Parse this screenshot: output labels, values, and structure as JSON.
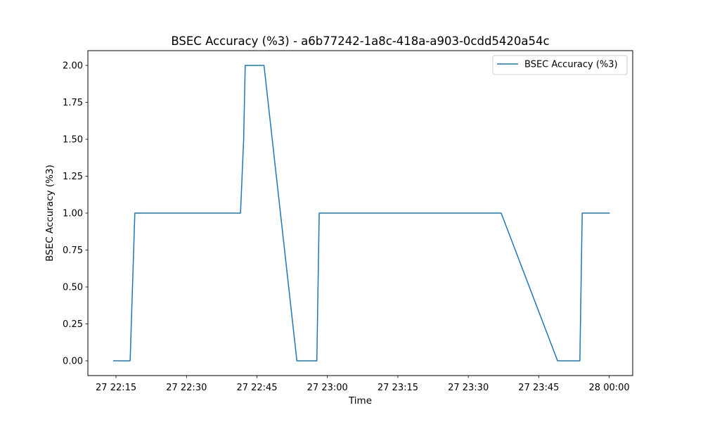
{
  "chart_data": {
    "type": "line",
    "title": "BSEC Accuracy (%3) - a6b77242-1a8c-418a-a903-0cdd5420a54c",
    "xlabel": "Time",
    "ylabel": "BSEC Accuracy (%3)",
    "xlim": [
      "27 22:09",
      "28 00:05"
    ],
    "ylim": [
      -0.1,
      2.1
    ],
    "grid": false,
    "legend": {
      "position": "top-right",
      "entries": [
        "BSEC Accuracy (%3)"
      ]
    },
    "x_ticks": [
      "27 22:15",
      "27 22:30",
      "27 22:45",
      "27 23:00",
      "27 23:15",
      "27 23:30",
      "27 23:45",
      "28 00:00"
    ],
    "y_ticks": [
      "0.00",
      "0.25",
      "0.50",
      "0.75",
      "1.00",
      "1.25",
      "1.50",
      "1.75",
      "2.00"
    ],
    "series": [
      {
        "name": "BSEC Accuracy (%3)",
        "color": "#1f77b4",
        "points": [
          {
            "x": "27 22:14:30",
            "y": 0
          },
          {
            "x": "27 22:18:00",
            "y": 0
          },
          {
            "x": "27 22:19:00",
            "y": 1
          },
          {
            "x": "27 22:41:30",
            "y": 1
          },
          {
            "x": "27 22:42:10",
            "y": 1.5
          },
          {
            "x": "27 22:42:30",
            "y": 2
          },
          {
            "x": "27 22:46:30",
            "y": 2
          },
          {
            "x": "27 22:53:30",
            "y": 0
          },
          {
            "x": "27 22:57:45",
            "y": 0
          },
          {
            "x": "27 22:58:15",
            "y": 1
          },
          {
            "x": "27 23:37:00",
            "y": 1
          },
          {
            "x": "27 23:49:00",
            "y": 0
          },
          {
            "x": "27 23:53:45",
            "y": 0
          },
          {
            "x": "27 23:54:15",
            "y": 1
          },
          {
            "x": "28 00:00:00",
            "y": 1
          }
        ]
      }
    ]
  }
}
